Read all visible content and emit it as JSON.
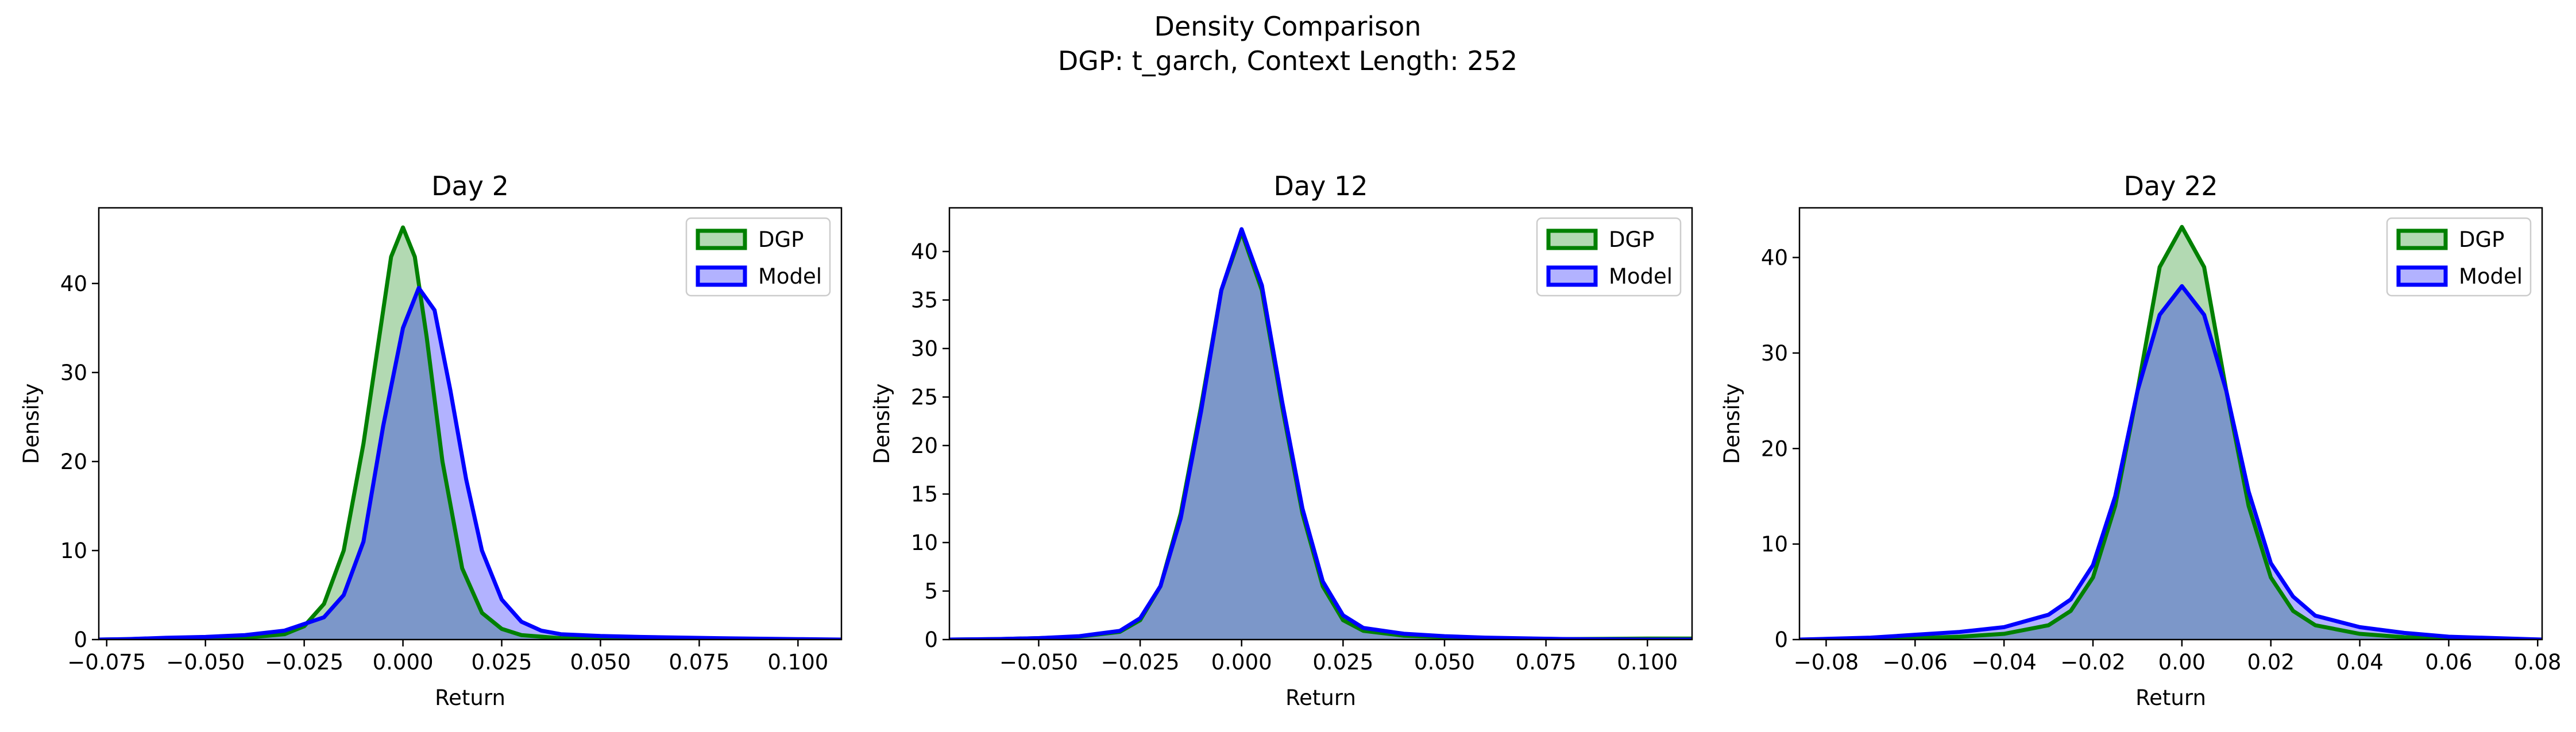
{
  "figure": {
    "suptitle_line1": "Density Comparison",
    "suptitle_line2": "DGP: t_garch, Context Length: 252"
  },
  "colors": {
    "dgp_line": "#008000",
    "dgp_fill": "#008000",
    "model_line": "#0000ff",
    "model_fill": "#0000ff"
  },
  "chart_data": [
    {
      "type": "area",
      "title": "Day 2",
      "xlabel": "Return",
      "ylabel": "Density",
      "xlim": [
        -0.077,
        0.111
      ],
      "ylim": [
        0,
        48.5
      ],
      "xticks": [
        -0.075,
        -0.05,
        -0.025,
        0.0,
        0.025,
        0.05,
        0.075,
        0.1
      ],
      "xtick_labels": [
        "−0.075",
        "−0.050",
        "−0.025",
        "0.000",
        "0.025",
        "0.050",
        "0.075",
        "0.100"
      ],
      "yticks": [
        0,
        10,
        20,
        30,
        40
      ],
      "ytick_labels": [
        "0",
        "10",
        "20",
        "30",
        "40"
      ],
      "grid": false,
      "legend": "top-right",
      "series": [
        {
          "name": "DGP",
          "color": "#008000",
          "x": [
            -0.077,
            -0.07,
            -0.06,
            -0.05,
            -0.04,
            -0.03,
            -0.025,
            -0.02,
            -0.015,
            -0.01,
            -0.006,
            -0.003,
            0.0,
            0.003,
            0.006,
            0.01,
            0.015,
            0.02,
            0.025,
            0.03,
            0.04,
            0.05,
            0.06,
            0.08,
            0.111
          ],
          "y": [
            0.0,
            0.05,
            0.15,
            0.1,
            0.2,
            0.6,
            1.5,
            4.0,
            10.0,
            22.0,
            34.0,
            43.0,
            46.3,
            43.0,
            34.0,
            20.0,
            8.0,
            3.0,
            1.2,
            0.5,
            0.15,
            0.05,
            0.1,
            0.0,
            0.0
          ]
        },
        {
          "name": "Model",
          "color": "#0000ff",
          "x": [
            -0.077,
            -0.07,
            -0.06,
            -0.05,
            -0.04,
            -0.03,
            -0.02,
            -0.015,
            -0.01,
            -0.005,
            0.0,
            0.004,
            0.008,
            0.012,
            0.016,
            0.02,
            0.025,
            0.03,
            0.035,
            0.04,
            0.05,
            0.06,
            0.08,
            0.1,
            0.111
          ],
          "y": [
            0.0,
            0.05,
            0.2,
            0.3,
            0.5,
            1.0,
            2.5,
            5.0,
            11.0,
            24.0,
            35.0,
            39.5,
            37.0,
            28.0,
            18.0,
            10.0,
            4.5,
            2.0,
            1.0,
            0.6,
            0.4,
            0.3,
            0.15,
            0.05,
            0.0
          ]
        }
      ]
    },
    {
      "type": "area",
      "title": "Day 12",
      "xlabel": "Return",
      "ylabel": "Density",
      "xlim": [
        -0.072,
        0.111
      ],
      "ylim": [
        0,
        44.5
      ],
      "xticks": [
        -0.05,
        -0.025,
        0.0,
        0.025,
        0.05,
        0.075,
        0.1
      ],
      "xtick_labels": [
        "−0.050",
        "−0.025",
        "0.000",
        "0.025",
        "0.050",
        "0.075",
        "0.100"
      ],
      "yticks": [
        0,
        5,
        10,
        15,
        20,
        25,
        30,
        35,
        40
      ],
      "ytick_labels": [
        "0",
        "5",
        "10",
        "15",
        "20",
        "25",
        "30",
        "35",
        "40"
      ],
      "grid": false,
      "legend": "top-right",
      "series": [
        {
          "name": "DGP",
          "color": "#008000",
          "x": [
            -0.072,
            -0.06,
            -0.05,
            -0.04,
            -0.03,
            -0.025,
            -0.02,
            -0.015,
            -0.01,
            -0.005,
            0.0,
            0.005,
            0.01,
            0.015,
            0.02,
            0.025,
            0.03,
            0.04,
            0.05,
            0.06,
            0.08,
            0.1,
            0.111
          ],
          "y": [
            0.0,
            0.05,
            0.15,
            0.3,
            0.8,
            2.0,
            5.5,
            13.0,
            24.0,
            36.0,
            42.0,
            36.0,
            24.0,
            13.0,
            5.5,
            2.0,
            0.9,
            0.4,
            0.25,
            0.15,
            0.05,
            0.1,
            0.1
          ]
        },
        {
          "name": "Model",
          "color": "#0000ff",
          "x": [
            -0.072,
            -0.06,
            -0.05,
            -0.04,
            -0.03,
            -0.025,
            -0.02,
            -0.015,
            -0.01,
            -0.005,
            0.0,
            0.005,
            0.01,
            0.015,
            0.02,
            0.025,
            0.03,
            0.04,
            0.05,
            0.06,
            0.08,
            0.1,
            0.111
          ],
          "y": [
            0.0,
            0.05,
            0.15,
            0.35,
            0.9,
            2.2,
            5.5,
            12.5,
            23.5,
            36.0,
            42.3,
            36.5,
            24.5,
            13.5,
            6.0,
            2.5,
            1.2,
            0.6,
            0.35,
            0.2,
            0.05,
            0.0,
            0.0
          ]
        }
      ]
    },
    {
      "type": "area",
      "title": "Day 22",
      "xlabel": "Return",
      "ylabel": "Density",
      "xlim": [
        -0.086,
        0.081
      ],
      "ylim": [
        0,
        45.2
      ],
      "xticks": [
        -0.08,
        -0.06,
        -0.04,
        -0.02,
        0.0,
        0.02,
        0.04,
        0.06,
        0.08
      ],
      "xtick_labels": [
        "−0.08",
        "−0.06",
        "−0.04",
        "−0.02",
        "0.00",
        "0.02",
        "0.04",
        "0.06",
        "0.08"
      ],
      "yticks": [
        0,
        10,
        20,
        30,
        40
      ],
      "ytick_labels": [
        "0",
        "10",
        "20",
        "30",
        "40"
      ],
      "grid": false,
      "legend": "top-right",
      "series": [
        {
          "name": "DGP",
          "color": "#008000",
          "x": [
            -0.086,
            -0.07,
            -0.06,
            -0.05,
            -0.04,
            -0.03,
            -0.025,
            -0.02,
            -0.015,
            -0.01,
            -0.005,
            0.0,
            0.005,
            0.01,
            0.015,
            0.02,
            0.025,
            0.03,
            0.04,
            0.05,
            0.06,
            0.081
          ],
          "y": [
            0.0,
            0.05,
            0.15,
            0.3,
            0.6,
            1.5,
            3.0,
            6.5,
            14.0,
            26.0,
            39.0,
            43.2,
            39.0,
            26.0,
            14.0,
            6.5,
            3.0,
            1.5,
            0.6,
            0.25,
            0.1,
            0.0
          ]
        },
        {
          "name": "Model",
          "color": "#0000ff",
          "x": [
            -0.086,
            -0.07,
            -0.06,
            -0.05,
            -0.04,
            -0.03,
            -0.025,
            -0.02,
            -0.015,
            -0.01,
            -0.005,
            0.0,
            0.005,
            0.01,
            0.015,
            0.02,
            0.025,
            0.03,
            0.04,
            0.05,
            0.06,
            0.081
          ],
          "y": [
            0.0,
            0.2,
            0.5,
            0.8,
            1.3,
            2.6,
            4.2,
            7.8,
            15.0,
            26.0,
            34.0,
            37.0,
            34.0,
            26.0,
            15.5,
            8.0,
            4.5,
            2.5,
            1.3,
            0.7,
            0.3,
            0.0
          ]
        }
      ]
    }
  ]
}
